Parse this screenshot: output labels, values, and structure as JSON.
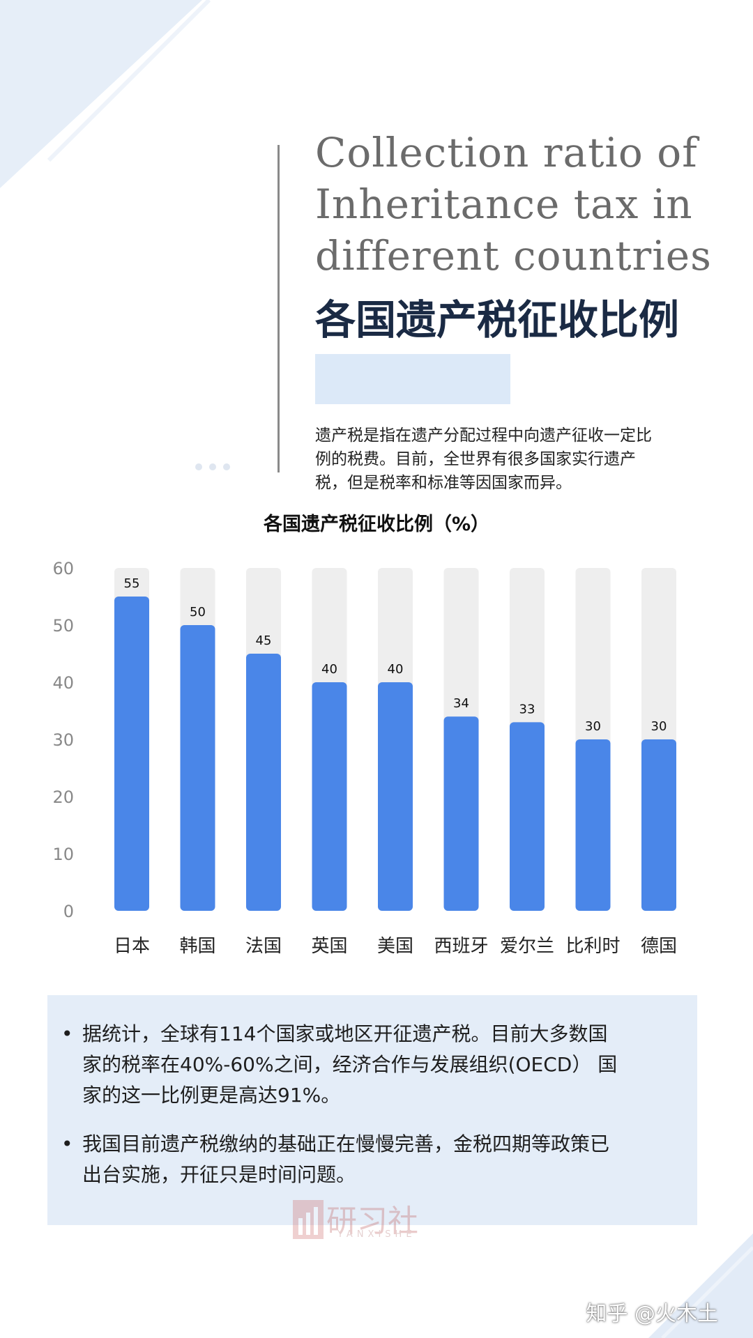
{
  "title_en": [
    "Collection ratio of",
    "Inheritance tax in",
    "different countries"
  ],
  "title_cn": "各国遗产税征收比例",
  "intro": [
    "遗产税是指在遗产分配过程中向遗产征收一定比",
    "例的税费。目前，全世界有很多国家实行遗产",
    "税，但是税率和标准等因国家而异。"
  ],
  "notes": [
    {
      "bullet": "•",
      "lines": [
        "据统计，全球有114个国家或地区开征遗产税。目前大多数国",
        "家的税率在40%-60%之间，经济合作与发展组织(OECD） 国",
        "家的这一比例更是高达91%。"
      ]
    },
    {
      "bullet": "•",
      "lines": [
        "我国目前遗产税缴纳的基础正在慢慢完善，金税四期等政策已",
        "出台实施，开征只是时间问题。"
      ]
    }
  ],
  "logo": {
    "name": "研习社",
    "sub": "YANXISHE"
  },
  "watermark": "知乎 @火木土",
  "colors": {
    "bar": "#4a86e8",
    "track": "#eeeeee",
    "accent": "#dce9f8",
    "title": "#1a2a44"
  },
  "chart_data": {
    "type": "bar",
    "title": "各国遗产税征收比例（%）",
    "categories": [
      "日本",
      "韩国",
      "法国",
      "英国",
      "美国",
      "西班牙",
      "爱尔兰",
      "比利时",
      "德国"
    ],
    "values": [
      55,
      50,
      45,
      40,
      40,
      34,
      33,
      30,
      30
    ],
    "ylim": [
      0,
      60
    ],
    "yticks": [
      0,
      10,
      20,
      30,
      40,
      50,
      60
    ],
    "xlabel": "",
    "ylabel": "",
    "data_labels": true,
    "grid": false
  }
}
